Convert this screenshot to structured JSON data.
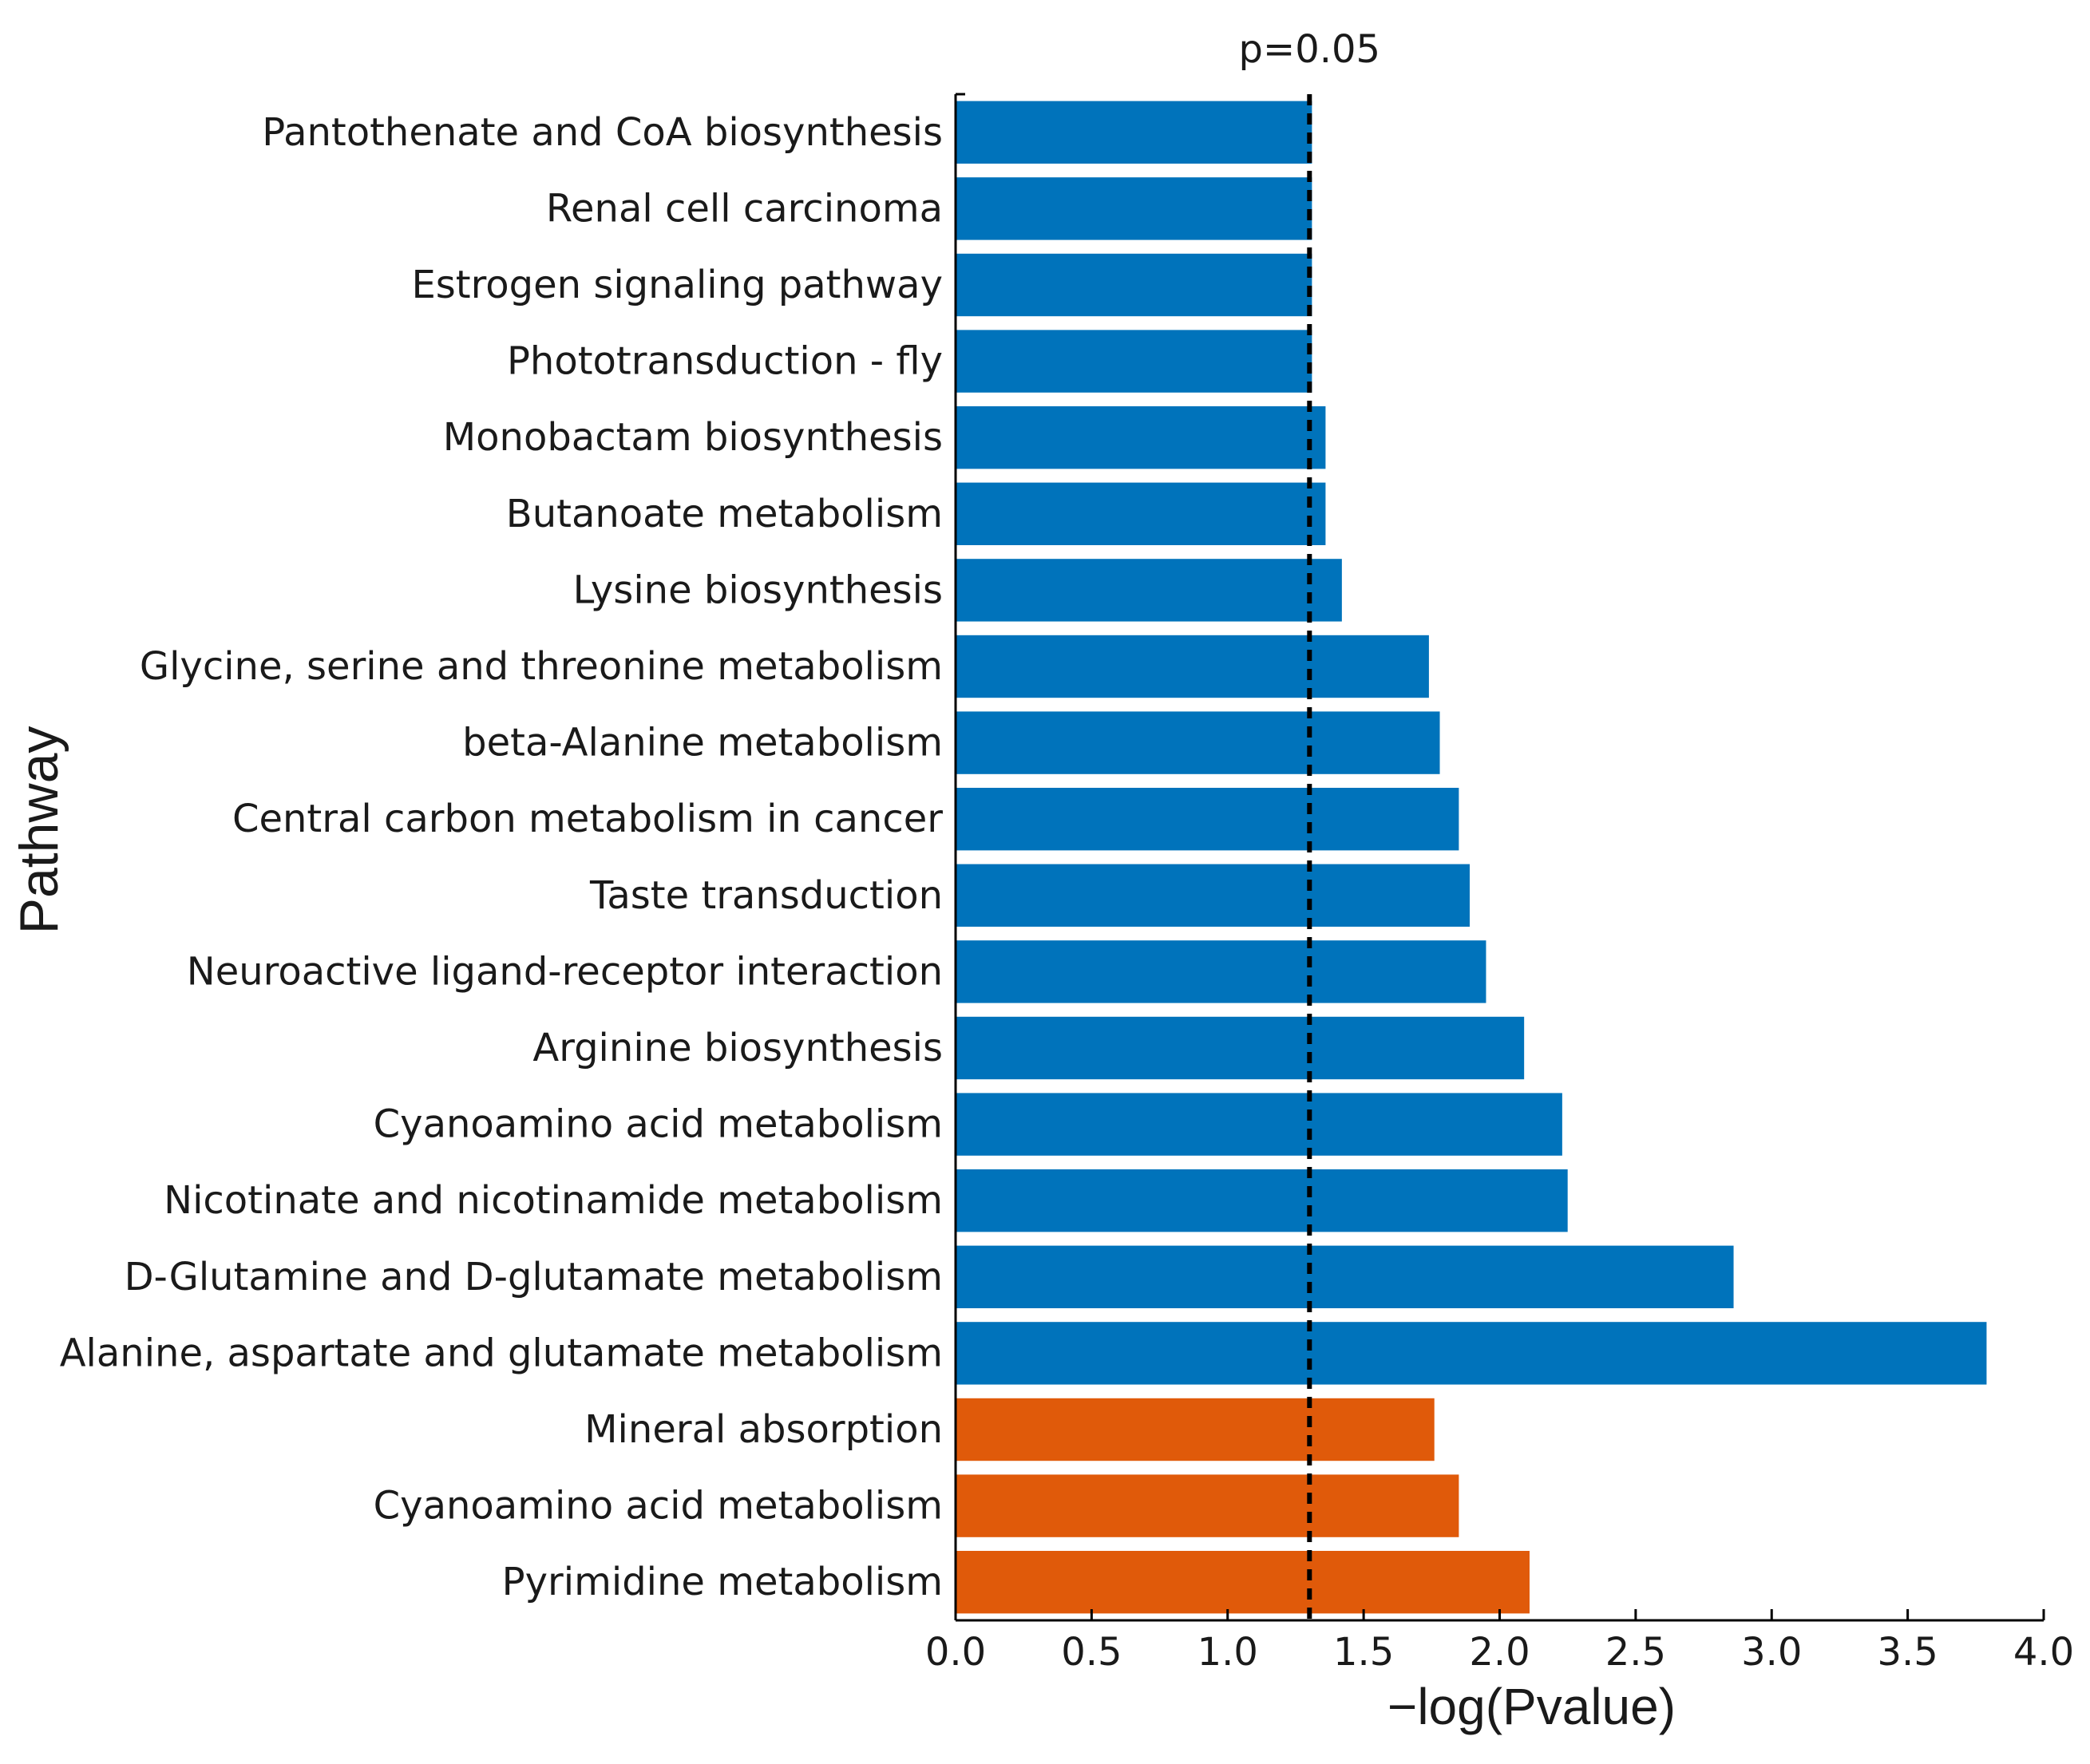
{
  "chart_data": {
    "type": "bar",
    "orientation": "horizontal",
    "xlabel": "−log(Pvalue)",
    "ylabel": "Pathway",
    "xlim": [
      0.0,
      4.0
    ],
    "xticks": [
      "0.0",
      "0.5",
      "1.0",
      "1.5",
      "2.0",
      "2.5",
      "3.0",
      "3.5",
      "4.0"
    ],
    "xtick_values": [
      0.0,
      0.5,
      1.0,
      1.5,
      2.0,
      2.5,
      3.0,
      3.5,
      4.0
    ],
    "threshold": {
      "value": 1.301,
      "label": "p=0.05",
      "style": "dashed"
    },
    "colors": {
      "group_a": "#0073BB",
      "group_b": "#E05A0A",
      "threshold": "#000000"
    },
    "bars": [
      {
        "label": "Pantothenate and CoA biosynthesis",
        "value": 1.31,
        "group": "group_a"
      },
      {
        "label": "Renal cell carcinoma",
        "value": 1.31,
        "group": "group_a"
      },
      {
        "label": "Estrogen signaling pathway",
        "value": 1.31,
        "group": "group_a"
      },
      {
        "label": "Phototransduction - fly",
        "value": 1.31,
        "group": "group_a"
      },
      {
        "label": "Monobactam biosynthesis",
        "value": 1.36,
        "group": "group_a"
      },
      {
        "label": "Butanoate metabolism",
        "value": 1.36,
        "group": "group_a"
      },
      {
        "label": "Lysine biosynthesis",
        "value": 1.42,
        "group": "group_a"
      },
      {
        "label": "Glycine, serine and threonine metabolism",
        "value": 1.74,
        "group": "group_a"
      },
      {
        "label": "beta-Alanine metabolism",
        "value": 1.78,
        "group": "group_a"
      },
      {
        "label": "Central carbon metabolism in cancer",
        "value": 1.85,
        "group": "group_a"
      },
      {
        "label": "Taste transduction",
        "value": 1.89,
        "group": "group_a"
      },
      {
        "label": "Neuroactive ligand-receptor interaction",
        "value": 1.95,
        "group": "group_a"
      },
      {
        "label": "Arginine biosynthesis",
        "value": 2.09,
        "group": "group_a"
      },
      {
        "label": "Cyanoamino acid metabolism",
        "value": 2.23,
        "group": "group_a"
      },
      {
        "label": "Nicotinate and nicotinamide metabolism",
        "value": 2.25,
        "group": "group_a"
      },
      {
        "label": "D-Glutamine and D-glutamate metabolism",
        "value": 2.86,
        "group": "group_a"
      },
      {
        "label": "Alanine, aspartate and glutamate metabolism",
        "value": 3.79,
        "group": "group_a"
      },
      {
        "label": "Mineral absorption",
        "value": 1.76,
        "group": "group_b"
      },
      {
        "label": "Cyanoamino acid metabolism",
        "value": 1.85,
        "group": "group_b"
      },
      {
        "label": "Pyrimidine metabolism",
        "value": 2.11,
        "group": "group_b"
      }
    ]
  }
}
